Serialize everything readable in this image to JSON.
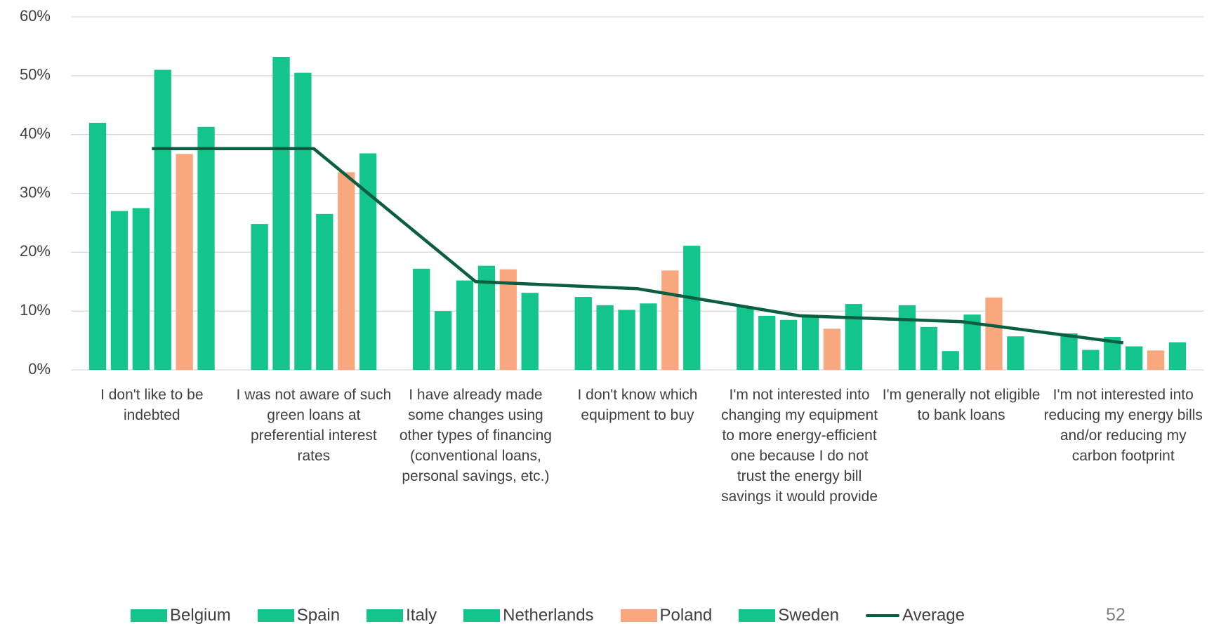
{
  "chart_data": {
    "type": "bar",
    "categories": [
      "I don't like to be indebted",
      "I was not aware of such green loans at preferential interest rates",
      "I have already made some changes using other types of financing (conventional loans, personal savings, etc.)",
      "I don't know which equipment to buy",
      "I'm not interested into changing my equipment to more energy-efficient one because I do not trust the energy bill savings it would provide",
      "I'm generally not eligible to bank loans",
      "I'm not interested into reducing my energy bills and/or reducing my carbon footprint"
    ],
    "series": [
      {
        "name": "Belgium",
        "color": "#13c48c",
        "values": [
          42,
          24.8,
          17.2,
          12.4,
          10.8,
          11,
          6.2
        ]
      },
      {
        "name": "Spain",
        "color": "#13c48c",
        "values": [
          27,
          53.2,
          10,
          11,
          9.2,
          7.3,
          3.4
        ]
      },
      {
        "name": "Italy",
        "color": "#13c48c",
        "values": [
          27.5,
          50.5,
          15.2,
          10.2,
          8.5,
          3.2,
          5.6
        ]
      },
      {
        "name": "Netherlands",
        "color": "#13c48c",
        "values": [
          51,
          26.5,
          17.7,
          11.3,
          9.3,
          9.4,
          4
        ]
      },
      {
        "name": "Poland",
        "color": "#f8a77e",
        "values": [
          36.7,
          33.6,
          17.1,
          16.9,
          7,
          12.3,
          3.3
        ]
      },
      {
        "name": "Sweden",
        "color": "#13c48c",
        "values": [
          41.3,
          36.8,
          13.1,
          21.1,
          11.2,
          5.7,
          4.7
        ]
      },
      {
        "name": "Average",
        "color": "#0b5e3f",
        "type": "line",
        "values": [
          37.6,
          37.6,
          15,
          13.8,
          9.2,
          8.2,
          4.6
        ]
      }
    ],
    "ylim": [
      0,
      60
    ],
    "yticks": [
      {
        "value": 0,
        "label": "0%"
      },
      {
        "value": 10,
        "label": "10%"
      },
      {
        "value": 20,
        "label": "20%"
      },
      {
        "value": 30,
        "label": "30%"
      },
      {
        "value": 40,
        "label": "40%"
      },
      {
        "value": 50,
        "label": "50%"
      },
      {
        "value": 60,
        "label": "60%"
      }
    ],
    "grid": true,
    "legend": "bottom",
    "page_number": "52"
  }
}
